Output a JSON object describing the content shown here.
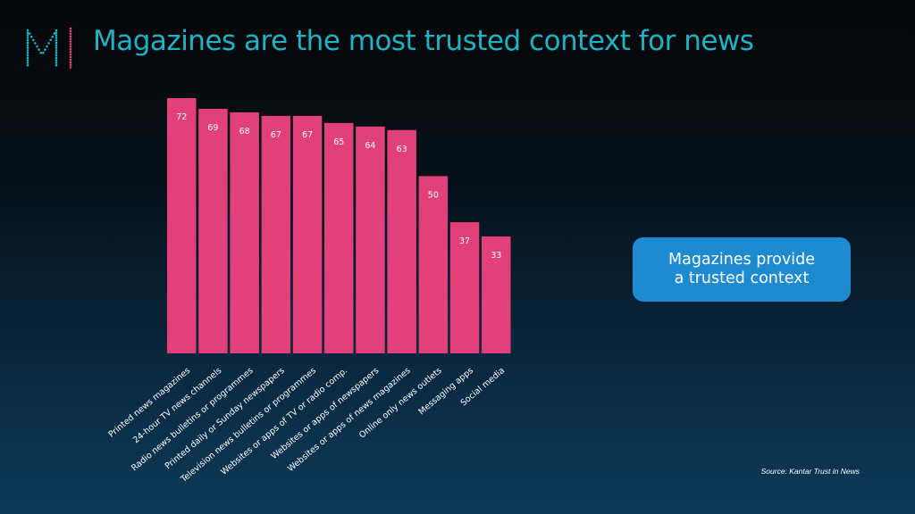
{
  "header": {
    "title": "Magazines are the most trusted context for news"
  },
  "logo": {
    "icon": "m-dotted-logo-icon",
    "colors": [
      "#1fb3c2",
      "#e0407a"
    ]
  },
  "chart_data": {
    "type": "bar",
    "title": "",
    "xlabel": "",
    "ylabel": "",
    "categories": [
      "Printed news magazines",
      "24-hour TV news channels",
      "Radio news bulletins or programmes",
      "Printed daily or Sunday newspapers",
      "Television news bulletins or programmes",
      "Websites or apps of TV or radio comp.",
      "Websites or apps of newspapers",
      "Websites or apps of news magazines",
      "Online only news outlets",
      "Messaging apps",
      "Social media"
    ],
    "values": [
      72,
      69,
      68,
      67,
      67,
      65,
      64,
      63,
      50,
      37,
      33
    ],
    "ylim": [
      0,
      72
    ],
    "grid": false,
    "bar_color": "#e2407a"
  },
  "callout": {
    "text": "Magazines provide\na trusted context",
    "color": "#1e8bd1"
  },
  "source": {
    "text": "Source:  Kantar Trust in News"
  }
}
